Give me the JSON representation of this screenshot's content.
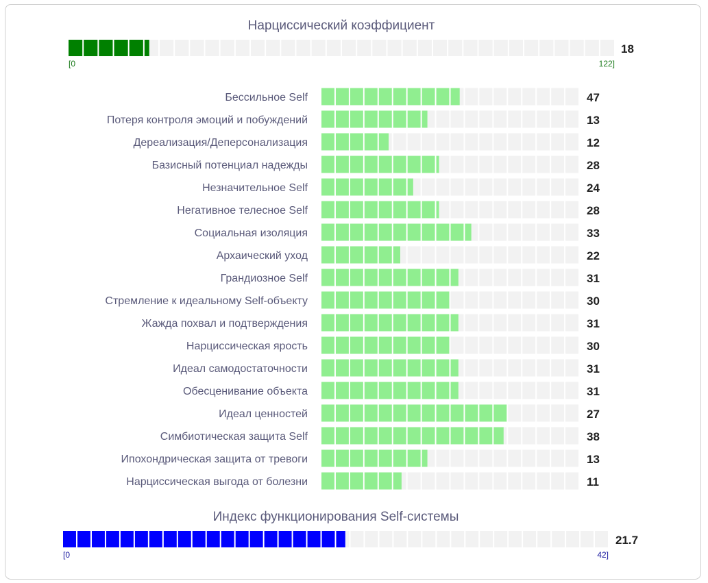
{
  "chart_data": [
    {
      "type": "bar",
      "title": "Нарциссический коэффициент",
      "value": 18,
      "range": [
        0,
        122
      ],
      "min_label": "[0",
      "max_label": "122]",
      "segments": 36,
      "color": "#008000"
    },
    {
      "type": "bar",
      "title": "",
      "orientation": "horizontal",
      "scale_max": 66,
      "segments": 18,
      "color": "#90ee90",
      "categories": [
        "Бессильное Self",
        "Потеря контроля эмоций и побуждений",
        "Дереализация/Деперсонализация",
        "Базисный потенциал надежды",
        "Незначительное Self",
        "Негативное телесное Self",
        "Социальная изоляция",
        "Архаический уход",
        "Грандиозное Self",
        "Стремление к идеальному Self-объекту",
        "Жажда похвал и подтверждения",
        "Нарциссическая ярость",
        "Идеал самодостаточности",
        "Обесценивание объекта",
        "Идеал ценностей",
        "Симбиотическая защита Self",
        "Ипохондрическая защита от тревоги",
        "Нарциссическая выгода от болезни"
      ],
      "values": [
        47,
        13,
        12,
        28,
        24,
        28,
        33,
        22,
        31,
        30,
        31,
        30,
        31,
        31,
        27,
        38,
        13,
        11
      ],
      "fill_fractions": [
        0.535,
        0.41,
        0.26,
        0.455,
        0.355,
        0.455,
        0.58,
        0.305,
        0.53,
        0.5,
        0.53,
        0.5,
        0.53,
        0.53,
        0.72,
        0.705,
        0.41,
        0.31
      ]
    },
    {
      "type": "bar",
      "title": "Индекс функционирования Self-системы",
      "value": 21.7,
      "range": [
        0,
        42
      ],
      "min_label": "[0",
      "max_label": "42]",
      "segments": 38,
      "color": "#0000ff"
    }
  ]
}
